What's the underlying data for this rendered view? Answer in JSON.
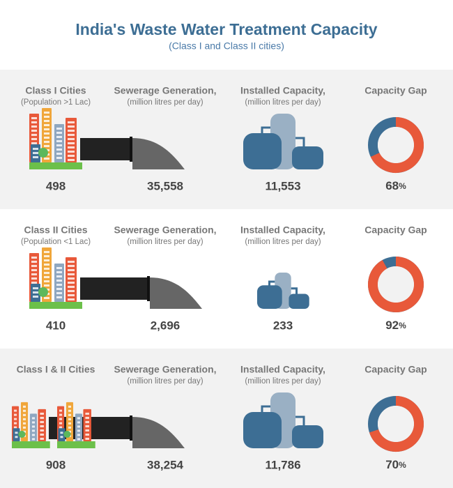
{
  "title": "India's Waste Water Treatment Capacity",
  "subtitle": "(Class I and Class II cities)",
  "rows": [
    {
      "city": "Class I Cities",
      "city_note": "(Population >1 Lac)",
      "sewerage_head": "Sewerage Generation,",
      "sewerage_unit": "(million litres per day)",
      "installed_head": "Installed Capacity,",
      "installed_unit": "(million litres per day)",
      "gap_head": "Capacity Gap",
      "cities": "498",
      "sewerage": "35,558",
      "installed": "11,553",
      "gap": 68,
      "gap_unit": "%"
    },
    {
      "city": "Class II Cities",
      "city_note": "(Population <1 Lac)",
      "sewerage_head": "Sewerage Generation,",
      "sewerage_unit": "(million litres per day)",
      "installed_head": "Installed Capacity,",
      "installed_unit": "(million litres per day)",
      "gap_head": "Capacity Gap",
      "cities": "410",
      "sewerage": "2,696",
      "installed": "233",
      "gap": 92,
      "gap_unit": "%"
    },
    {
      "city": "Class I & II Cities",
      "sewerage_head": "Sewerage Generation,",
      "sewerage_unit": "(million litres per day)",
      "installed_head": "Installed Capacity,",
      "installed_unit": "(million litres per day)",
      "gap_head": "Capacity Gap",
      "cities": "908",
      "sewerage": "38,254",
      "installed": "11,786",
      "gap": 70,
      "gap_unit": "%"
    }
  ]
}
